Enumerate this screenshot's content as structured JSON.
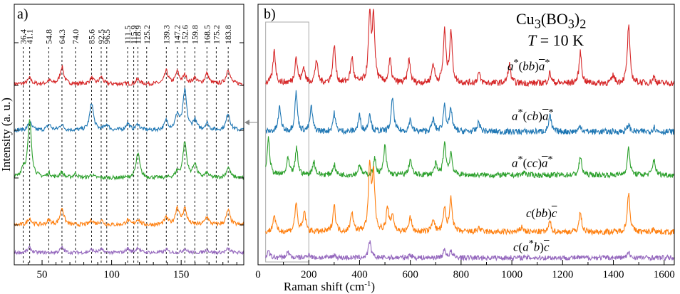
{
  "figure": {
    "compound_html": "Cu<sub>3</sub>(BO<sub>3</sub>)<sub>2</sub>",
    "temperature_label": "T = 10 K",
    "x_label": "Raman shift (cm",
    "x_label_sup": "-1",
    "x_label_end": ")",
    "y_label": "Intensity (a. u.)"
  },
  "chart_data": [
    {
      "panel": "a)",
      "type": "line",
      "xlabel": "",
      "ylabel": "Intensity (a. u.)",
      "xlim": [
        30,
        195
      ],
      "x_ticks": [
        50,
        100,
        150
      ],
      "grid": false,
      "vertical_markers": [
        "36.4",
        "41.1",
        "54.8",
        "64.3",
        "74.0",
        "85.6",
        "92.5",
        "96.5",
        "111.5",
        "115.9",
        "118.9",
        "125.2",
        "139.3",
        "147.2",
        "152.6",
        "159.8",
        "168.5",
        "175.2",
        "183.8"
      ],
      "colors": {
        "red": "#d62728",
        "blue": "#1f77b4",
        "green": "#2ca02c",
        "orange": "#ff7f0e",
        "purple": "#9467bd"
      },
      "series": [
        {
          "color": "#d62728",
          "peaks": [
            [
              41,
              0.5
            ],
            [
              55,
              0.3
            ],
            [
              64.3,
              1.5
            ],
            [
              85.6,
              0.5
            ],
            [
              92.5,
              0.6
            ],
            [
              118.9,
              0.4
            ],
            [
              139.3,
              1.1
            ],
            [
              147.2,
              1.0
            ],
            [
              152.6,
              0.7
            ],
            [
              159.8,
              0.5
            ],
            [
              168.5,
              0.9
            ],
            [
              183.8,
              1.3
            ]
          ]
        },
        {
          "color": "#1f77b4",
          "peaks": [
            [
              41.1,
              0.7
            ],
            [
              55,
              0.5
            ],
            [
              64,
              0.5
            ],
            [
              85.6,
              2.4
            ],
            [
              96.5,
              0.5
            ],
            [
              111.5,
              0.6
            ],
            [
              118.9,
              0.5
            ],
            [
              139.3,
              0.8
            ],
            [
              147.2,
              1.3
            ],
            [
              152.6,
              3.4
            ],
            [
              159.8,
              0.8
            ],
            [
              168.5,
              0.6
            ],
            [
              183.8,
              1.5
            ]
          ]
        },
        {
          "color": "#2ca02c",
          "peaks": [
            [
              36.4,
              0.8
            ],
            [
              41.1,
              5.3
            ],
            [
              55,
              0.4
            ],
            [
              64,
              0.5
            ],
            [
              74,
              0.4
            ],
            [
              85.6,
              0.3
            ],
            [
              118.9,
              2.3
            ],
            [
              147.2,
              0.5
            ],
            [
              152.6,
              3.3
            ],
            [
              159.8,
              1.3
            ],
            [
              168.5,
              0.4
            ],
            [
              183.8,
              1.0
            ]
          ]
        },
        {
          "color": "#ff7f0e",
          "peaks": [
            [
              41,
              0.6
            ],
            [
              55,
              0.4
            ],
            [
              64.3,
              1.5
            ],
            [
              85.6,
              0.4
            ],
            [
              92.5,
              0.4
            ],
            [
              111.5,
              0.4
            ],
            [
              118.9,
              0.5
            ],
            [
              139.3,
              0.6
            ],
            [
              147.2,
              1.5
            ],
            [
              152.6,
              1.4
            ],
            [
              168.5,
              0.7
            ],
            [
              183.8,
              1.3
            ]
          ]
        },
        {
          "color": "#9467bd",
          "peaks": [
            [
              41,
              0.5
            ],
            [
              64.3,
              0.5
            ],
            [
              85.6,
              0.3
            ],
            [
              92.5,
              0.3
            ],
            [
              111.5,
              0.4
            ],
            [
              118.9,
              0.5
            ],
            [
              139.3,
              0.3
            ],
            [
              152.6,
              0.4
            ],
            [
              168.5,
              0.3
            ],
            [
              183.8,
              0.4
            ]
          ]
        }
      ]
    },
    {
      "panel": "b)",
      "type": "line",
      "xlabel": "Raman shift (cm-1)",
      "xlim": [
        0,
        1640
      ],
      "x_ticks": [
        0,
        200,
        400,
        600,
        800,
        1000,
        1200,
        1400,
        1600
      ],
      "grid": false,
      "inset_box_x_range": [
        30,
        200
      ],
      "series": [
        {
          "name_html": "<i>a</i><sup>*</sup>(<i>bb</i>)<span style=\"text-decoration:overline\"><i>a</i></span><sup>*</sup>",
          "color": "#d62728",
          "peaks": [
            [
              64,
              2.5
            ],
            [
              150,
              2.0
            ],
            [
              180,
              1.2
            ],
            [
              230,
              1.8
            ],
            [
              300,
              3.0
            ],
            [
              370,
              2.0
            ],
            [
              440,
              5.0
            ],
            [
              455,
              5.0
            ],
            [
              520,
              1.8
            ],
            [
              595,
              1.8
            ],
            [
              690,
              1.5
            ],
            [
              735,
              4.0
            ],
            [
              760,
              4.0
            ],
            [
              870,
              0.8
            ],
            [
              990,
              1.5
            ],
            [
              1150,
              0.8
            ],
            [
              1270,
              2.4
            ],
            [
              1400,
              0.6
            ],
            [
              1460,
              4.5
            ],
            [
              1560,
              0.5
            ]
          ]
        },
        {
          "name_html": "<i>a</i><sup>*</sup>(<i>cb</i>)<span style=\"text-decoration:overline\"><i>a</i></span><sup>*</sup>",
          "color": "#1f77b4",
          "peaks": [
            [
              85,
              2.0
            ],
            [
              150,
              3.2
            ],
            [
              210,
              2.0
            ],
            [
              300,
              1.5
            ],
            [
              400,
              1.3
            ],
            [
              440,
              1.5
            ],
            [
              530,
              2.8
            ],
            [
              600,
              1.0
            ],
            [
              690,
              1.0
            ],
            [
              735,
              2.2
            ],
            [
              760,
              1.8
            ],
            [
              870,
              0.8
            ],
            [
              1150,
              1.3
            ],
            [
              1270,
              0.5
            ],
            [
              1460,
              0.6
            ],
            [
              1560,
              0.4
            ]
          ]
        },
        {
          "name_html": "<i>a</i><sup>*</sup>(<i>cc</i>)<span style=\"text-decoration:overline\"><i>a</i></span><sup>*</sup>",
          "color": "#2ca02c",
          "peaks": [
            [
              41,
              3.5
            ],
            [
              118,
              1.5
            ],
            [
              152,
              2.5
            ],
            [
              220,
              1.3
            ],
            [
              300,
              1.0
            ],
            [
              400,
              1.0
            ],
            [
              460,
              1.5
            ],
            [
              500,
              2.7
            ],
            [
              600,
              1.5
            ],
            [
              700,
              1.0
            ],
            [
              735,
              3.0
            ],
            [
              760,
              2.0
            ],
            [
              1050,
              0.3
            ],
            [
              1270,
              1.7
            ],
            [
              1460,
              2.5
            ],
            [
              1560,
              1.5
            ]
          ]
        },
        {
          "name_html": "<i>c</i>(<i>bb</i>)<span style=\"text-decoration:overline\"><i>c</i></span>",
          "color": "#ff7f0e",
          "peaks": [
            [
              64,
              1.5
            ],
            [
              150,
              2.5
            ],
            [
              183,
              1.8
            ],
            [
              300,
              2.4
            ],
            [
              370,
              1.8
            ],
            [
              440,
              5.5
            ],
            [
              455,
              5.0
            ],
            [
              510,
              2.0
            ],
            [
              530,
              1.5
            ],
            [
              600,
              1.3
            ],
            [
              690,
              1.2
            ],
            [
              735,
              2.0
            ],
            [
              760,
              3.0
            ],
            [
              870,
              0.4
            ],
            [
              1040,
              0.5
            ],
            [
              1150,
              0.9
            ],
            [
              1270,
              1.7
            ],
            [
              1460,
              3.5
            ],
            [
              1560,
              0.3
            ]
          ]
        },
        {
          "name_html": "<i>c</i>(<i>a</i><sup>*</sup><i>b</i>)<span style=\"text-decoration:overline\"><i>c</i></span>",
          "color": "#9467bd",
          "peaks": [
            [
              41,
              0.6
            ],
            [
              118,
              0.6
            ],
            [
              200,
              0.4
            ],
            [
              300,
              0.3
            ],
            [
              440,
              1.6
            ],
            [
              600,
              0.3
            ],
            [
              735,
              0.8
            ],
            [
              760,
              0.6
            ],
            [
              1460,
              0.5
            ]
          ]
        }
      ]
    }
  ]
}
